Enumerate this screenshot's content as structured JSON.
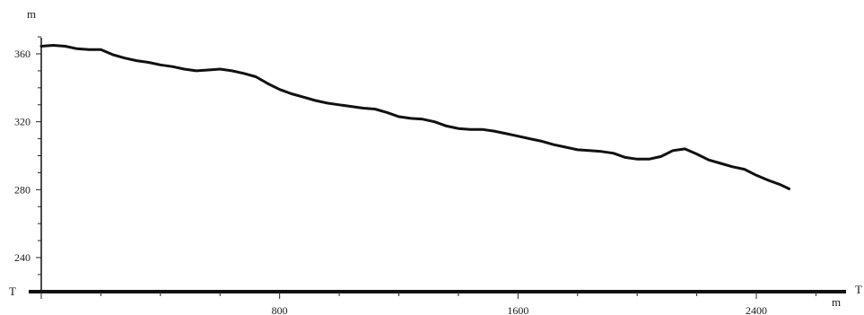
{
  "chart_data": {
    "type": "line",
    "title": "",
    "xlabel": "m",
    "ylabel": "m",
    "x_axis_end_label": "T",
    "y_axis_base_label": "T",
    "xlim": [
      0,
      2700
    ],
    "ylim": [
      220,
      375
    ],
    "x_ticks": [
      800,
      1600,
      2400
    ],
    "y_ticks": [
      240,
      280,
      320,
      360
    ],
    "grid": false,
    "legend": "none",
    "series": [
      {
        "color": "#111111",
        "x": [
          0,
          40,
          80,
          120,
          160,
          200,
          240,
          280,
          320,
          360,
          400,
          440,
          480,
          520,
          560,
          600,
          640,
          680,
          720,
          760,
          800,
          840,
          880,
          920,
          960,
          1000,
          1040,
          1080,
          1120,
          1160,
          1200,
          1240,
          1280,
          1320,
          1360,
          1400,
          1440,
          1480,
          1520,
          1560,
          1600,
          1640,
          1680,
          1720,
          1760,
          1800,
          1840,
          1880,
          1920,
          1960,
          2000,
          2040,
          2080,
          2120,
          2160,
          2200,
          2240,
          2280,
          2320,
          2360,
          2400,
          2440,
          2480,
          2510
        ],
        "y": [
          364.5,
          365.0,
          364.5,
          363.0,
          362.5,
          362.5,
          359.5,
          357.5,
          356.0,
          355.0,
          353.5,
          352.5,
          351.0,
          350.0,
          350.5,
          351.0,
          350.0,
          348.5,
          346.5,
          342.5,
          339.0,
          336.5,
          334.5,
          332.5,
          331.0,
          330.0,
          329.0,
          328.0,
          327.5,
          325.5,
          323.0,
          322.0,
          321.5,
          320.0,
          317.5,
          316.0,
          315.5,
          315.5,
          314.5,
          313.0,
          311.5,
          310.0,
          308.5,
          306.5,
          305.0,
          303.5,
          303.0,
          302.5,
          301.5,
          299.0,
          298.0,
          298.0,
          299.5,
          303.0,
          304.0,
          301.0,
          297.5,
          295.5,
          293.5,
          292.0,
          288.5,
          285.5,
          283.0,
          280.5
        ]
      }
    ]
  }
}
